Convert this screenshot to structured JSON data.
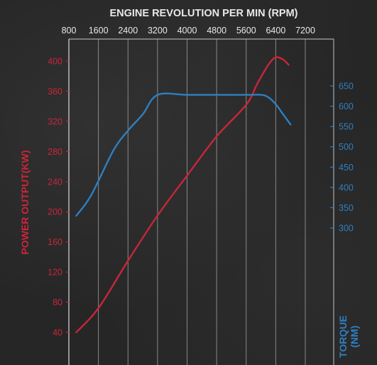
{
  "chart_data": {
    "type": "line",
    "title": "",
    "xlabel": "ENGINE REVOLUTION PER MIN (RPM)",
    "ylabel_left": "POWER OUTPUT(KW)",
    "ylabel_right": "TORQUE (NM)",
    "ylabel_right_lines": [
      "TORQUE",
      "(NM)"
    ],
    "x_ticks": [
      "800",
      "1600",
      "2400",
      "3200",
      "4000",
      "4800",
      "5600",
      "6400",
      "7200"
    ],
    "y_left_ticks": [
      "40",
      "80",
      "120",
      "160",
      "200",
      "240",
      "280",
      "320",
      "360",
      "400"
    ],
    "y_right_ticks": [
      "300",
      "350",
      "400",
      "450",
      "500",
      "550",
      "600",
      "650"
    ],
    "xlim": [
      800,
      7200
    ],
    "ylim_left": [
      40,
      400
    ],
    "ylim_right": [
      300,
      650
    ],
    "grid": true,
    "series": [
      {
        "axis": "left",
        "color": "#c8263a",
        "points": [
          [
            1000,
            40
          ],
          [
            1600,
            72
          ],
          [
            2400,
            135
          ],
          [
            3200,
            195
          ],
          [
            4000,
            248
          ],
          [
            4800,
            300
          ],
          [
            5600,
            342
          ],
          [
            5900,
            370
          ],
          [
            6200,
            395
          ],
          [
            6400,
            405
          ],
          [
            6600,
            402
          ],
          [
            6750,
            395
          ]
        ]
      },
      {
        "axis": "right",
        "color": "#2f7fc0",
        "points": [
          [
            1000,
            330
          ],
          [
            1400,
            380
          ],
          [
            2000,
            490
          ],
          [
            2400,
            540
          ],
          [
            2800,
            580
          ],
          [
            3200,
            628
          ],
          [
            4000,
            628
          ],
          [
            4800,
            628
          ],
          [
            5600,
            628
          ],
          [
            6000,
            628
          ],
          [
            6200,
            622
          ],
          [
            6400,
            605
          ],
          [
            6600,
            580
          ],
          [
            6800,
            555
          ]
        ]
      }
    ]
  },
  "colors": {
    "power": "#c8263a",
    "torque": "#2f7fc0",
    "text": "#e8e8e8",
    "grid": "#bfbfbf"
  }
}
